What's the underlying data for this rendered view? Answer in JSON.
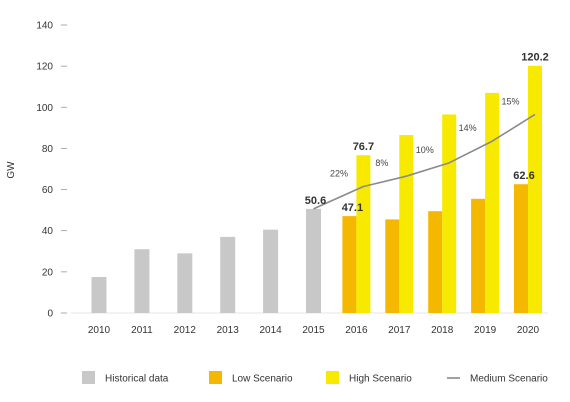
{
  "chart_data": {
    "type": "bar",
    "ylabel": "GW",
    "ylim": [
      0,
      140
    ],
    "yticks": [
      "0",
      "20",
      "40",
      "60",
      "80",
      "100",
      "120",
      "140"
    ],
    "categories": [
      "2010",
      "2011",
      "2012",
      "2013",
      "2014",
      "2015",
      "2016",
      "2017",
      "2018",
      "2019",
      "2020"
    ],
    "series": [
      {
        "name": "Historical data",
        "type": "bar",
        "color": "#c8c8c8",
        "values": [
          17.5,
          31,
          29,
          37,
          40.5,
          50.6,
          null,
          null,
          null,
          null,
          null
        ]
      },
      {
        "name": "Low Scenario",
        "type": "bar",
        "color": "#f5b800",
        "values": [
          null,
          null,
          null,
          null,
          null,
          null,
          47.1,
          45.5,
          49.5,
          55.5,
          62.6
        ]
      },
      {
        "name": "High Scenario",
        "type": "bar",
        "color": "#f7ea00",
        "values": [
          null,
          null,
          null,
          null,
          null,
          null,
          76.7,
          86.5,
          96.5,
          107,
          120.2
        ]
      },
      {
        "name": "Medium Scenario",
        "type": "line",
        "color": "#8a8a8a",
        "values": [
          null,
          null,
          null,
          null,
          null,
          50.6,
          61.5,
          66.5,
          73,
          83.5,
          96.5
        ]
      }
    ],
    "data_labels": [
      {
        "category": "2015",
        "value": "50.6"
      },
      {
        "category": "2016",
        "value": "76.7"
      },
      {
        "category": "2016",
        "value": "47.1"
      },
      {
        "category": "2020",
        "value": "120.2"
      },
      {
        "category": "2020",
        "value": "62.6"
      }
    ],
    "growth_labels": [
      {
        "category": "2016",
        "text": "22%"
      },
      {
        "category": "2017",
        "text": "8%"
      },
      {
        "category": "2018",
        "text": "10%"
      },
      {
        "category": "2019",
        "text": "14%"
      },
      {
        "category": "2020",
        "text": "15%"
      }
    ],
    "legend": {
      "placement": "bottom",
      "items": [
        {
          "label": "Historical data",
          "kind": "swatch",
          "color": "#c8c8c8"
        },
        {
          "label": "Low Scenario",
          "kind": "swatch",
          "color": "#f5b800"
        },
        {
          "label": "High Scenario",
          "kind": "swatch",
          "color": "#f7ea00"
        },
        {
          "label": "Medium Scenario",
          "kind": "line",
          "color": "#8a8a8a"
        }
      ]
    },
    "grid": false
  }
}
